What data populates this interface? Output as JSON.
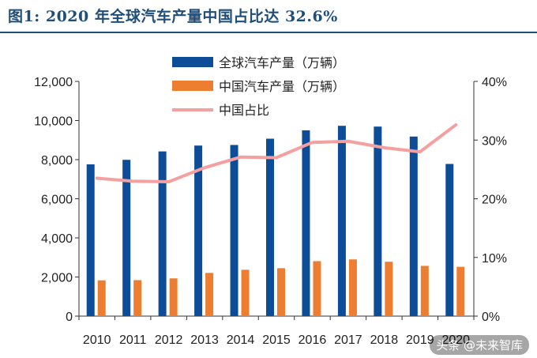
{
  "title": "图1: 2020 年全球汽车产量中国占比达 32.6%",
  "watermark": "头条 @未来智库",
  "colors": {
    "global": "#0d4c97",
    "china": "#ed7d31",
    "share": "#f4a0a0",
    "title": "#1f4e79"
  },
  "chart_data": {
    "type": "bar",
    "categories": [
      "2010",
      "2011",
      "2012",
      "2013",
      "2014",
      "2015",
      "2016",
      "2017",
      "2018",
      "2019",
      "2020"
    ],
    "series": [
      {
        "name": "全球汽车产量（万辆）",
        "type": "bar",
        "axis": "left",
        "values": [
          7760,
          7990,
          8420,
          8720,
          8750,
          9070,
          9500,
          9730,
          9690,
          9180,
          7780
        ]
      },
      {
        "name": "中国汽车产量（万辆）",
        "type": "bar",
        "axis": "left",
        "values": [
          1830,
          1840,
          1930,
          2210,
          2370,
          2450,
          2810,
          2900,
          2780,
          2570,
          2520
        ]
      },
      {
        "name": "中国占比",
        "type": "line",
        "axis": "right",
        "values": [
          23.5,
          23.0,
          22.9,
          25.3,
          27.1,
          27.0,
          29.6,
          29.8,
          28.7,
          28.0,
          32.6
        ]
      }
    ],
    "left_axis": {
      "ylim": [
        0,
        12000
      ],
      "ticks": [
        "0",
        "2,000",
        "4,000",
        "6,000",
        "8,000",
        "10,000",
        "12,000"
      ]
    },
    "right_axis": {
      "ylim": [
        0,
        40
      ],
      "ticks": [
        "0%",
        "10%",
        "20%",
        "30%",
        "40%"
      ]
    },
    "legend": "top-center",
    "grid": false
  }
}
